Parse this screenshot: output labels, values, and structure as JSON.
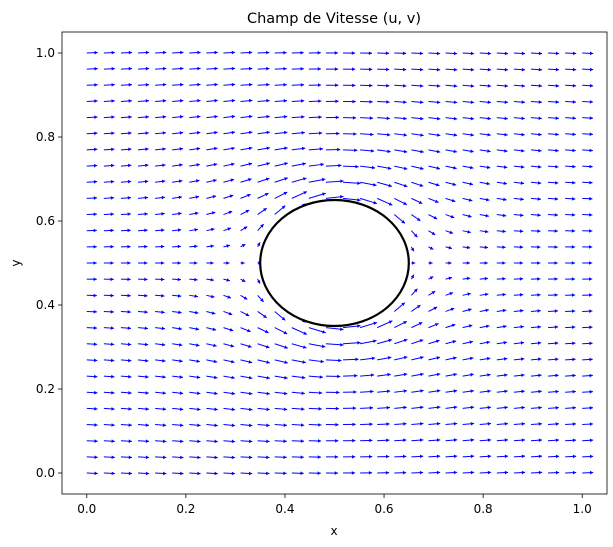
{
  "chart_data": {
    "type": "quiver",
    "title": "Champ de Vitesse (u, v)",
    "xlabel": "x",
    "ylabel": "y",
    "xlim": [
      -0.05,
      1.05
    ],
    "ylim": [
      -0.05,
      1.05
    ],
    "xticks": [
      "0.0",
      "0.2",
      "0.4",
      "0.6",
      "0.8",
      "1.0"
    ],
    "xtick_values": [
      0.0,
      0.2,
      0.4,
      0.6,
      0.8,
      1.0
    ],
    "yticks": [
      "0.0",
      "0.2",
      "0.4",
      "0.6",
      "0.8",
      "1.0"
    ],
    "ytick_values": [
      0.0,
      0.2,
      0.4,
      0.6,
      0.8,
      1.0
    ],
    "grid": false,
    "arrow_color": "#0000ff",
    "grid_points": {
      "x_start": 0.0,
      "x_end": 1.0,
      "nx": 30,
      "y_start": 0.0,
      "y_end": 1.0,
      "ny": 27
    },
    "flow": {
      "u_base": 1.0,
      "v_base": 0.0,
      "description": "uniform flow in +x direction around cylinder"
    },
    "obstacle": {
      "shape": "circle",
      "center": [
        0.5,
        0.5
      ],
      "radius": 0.15,
      "edge_color": "#000000",
      "fill_color": "#ffffff"
    }
  }
}
